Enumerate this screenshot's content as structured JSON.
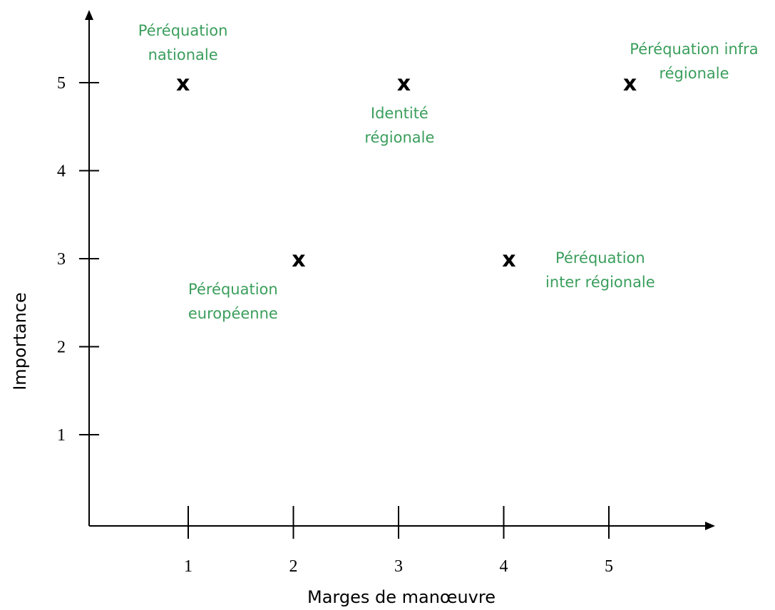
{
  "chart_data": {
    "type": "scatter",
    "title": "",
    "xlabel": "Marges de manœuvre",
    "ylabel": "Importance",
    "x_ticks": [
      1,
      2,
      3,
      4,
      5
    ],
    "y_ticks": [
      1,
      2,
      3,
      4,
      5
    ],
    "marker": "x",
    "grid": false,
    "points": [
      {
        "x": 0.95,
        "y": 5,
        "label": [
          "Péréquation",
          "nationale"
        ]
      },
      {
        "x": 3.05,
        "y": 5,
        "label": [
          "Identité",
          "régionale"
        ]
      },
      {
        "x": 5.2,
        "y": 5,
        "label": [
          "Péréquation infra",
          "régionale"
        ]
      },
      {
        "x": 2.05,
        "y": 3,
        "label": [
          "Péréquation",
          "européenne"
        ]
      },
      {
        "x": 4.05,
        "y": 3,
        "label": [
          "Péréquation",
          "inter régionale"
        ]
      }
    ],
    "colors": {
      "axis": "#000000",
      "label": "#3a9e5c"
    }
  }
}
